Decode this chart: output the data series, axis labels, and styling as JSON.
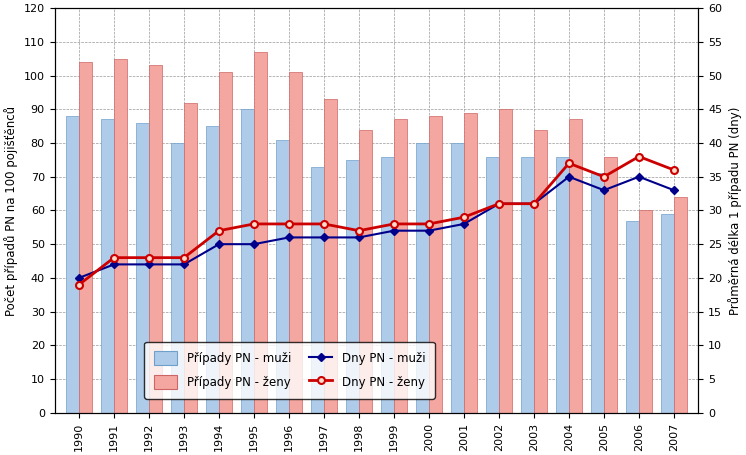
{
  "years": [
    1990,
    1991,
    1992,
    1993,
    1994,
    1995,
    1996,
    1997,
    1998,
    1999,
    2000,
    2001,
    2002,
    2003,
    2004,
    2005,
    2006,
    2007
  ],
  "pripady_muzi": [
    88,
    87,
    86,
    80,
    85,
    90,
    81,
    73,
    75,
    76,
    80,
    80,
    76,
    76,
    76,
    71,
    57,
    59
  ],
  "pripady_zeny": [
    104,
    105,
    103,
    92,
    101,
    107,
    101,
    93,
    84,
    87,
    88,
    89,
    90,
    84,
    87,
    76,
    60,
    64
  ],
  "dny_muzi": [
    20,
    22,
    22,
    22,
    25,
    25,
    26,
    26,
    26,
    27,
    27,
    28,
    31,
    31,
    35,
    33,
    35,
    33
  ],
  "dny_zeny": [
    19,
    23,
    23,
    23,
    27,
    28,
    28,
    28,
    27,
    28,
    28,
    29,
    31,
    31,
    37,
    35,
    38,
    36
  ],
  "bar_color_muzi": "#AECBEA",
  "bar_color_zeny": "#F4A7A0",
  "bar_edge_muzi": "#6FA0CC",
  "bar_edge_zeny": "#CC6666",
  "line_color_muzi": "#00008B",
  "line_color_zeny": "#CC0000",
  "ylabel_left": "Počet případů PN na 100 pojišťěnců",
  "ylabel_right": "Průměrná délka 1 případu PN (dny)",
  "ylim_left": [
    0,
    120
  ],
  "ylim_right": [
    0,
    60
  ],
  "yticks_left": [
    0,
    10,
    20,
    30,
    40,
    50,
    60,
    70,
    80,
    90,
    100,
    110,
    120
  ],
  "yticks_right": [
    0,
    5,
    10,
    15,
    20,
    25,
    30,
    35,
    40,
    45,
    50,
    55,
    60
  ],
  "legend_labels": [
    "Případy PN - muži",
    "Případy PN - ženy",
    "Dny PN - muži",
    "Dny PN - ženy"
  ]
}
